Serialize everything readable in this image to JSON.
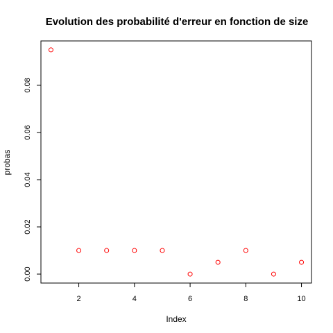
{
  "chart_data": {
    "type": "scatter",
    "title": "Evolution des probabilité d'erreur en fonction de size",
    "xlabel": "Index",
    "ylabel": "probas",
    "x": [
      1,
      2,
      3,
      4,
      5,
      6,
      7,
      8,
      9,
      10
    ],
    "y": [
      0.095,
      0.01,
      0.01,
      0.01,
      0.01,
      0.0,
      0.005,
      0.01,
      0.0,
      0.005
    ],
    "xlim": [
      0.64,
      10.36
    ],
    "ylim": [
      -0.0038,
      0.0988
    ],
    "xticks": [
      2,
      4,
      6,
      8,
      10
    ],
    "xtick_labels": [
      "2",
      "4",
      "6",
      "8",
      "10"
    ],
    "yticks": [
      0.0,
      0.02,
      0.04,
      0.06,
      0.08
    ],
    "ytick_labels": [
      "0.00",
      "0.02",
      "0.04",
      "0.06",
      "0.08"
    ],
    "point_color": "#ff0000",
    "marker": "open-circle",
    "grid": false
  }
}
